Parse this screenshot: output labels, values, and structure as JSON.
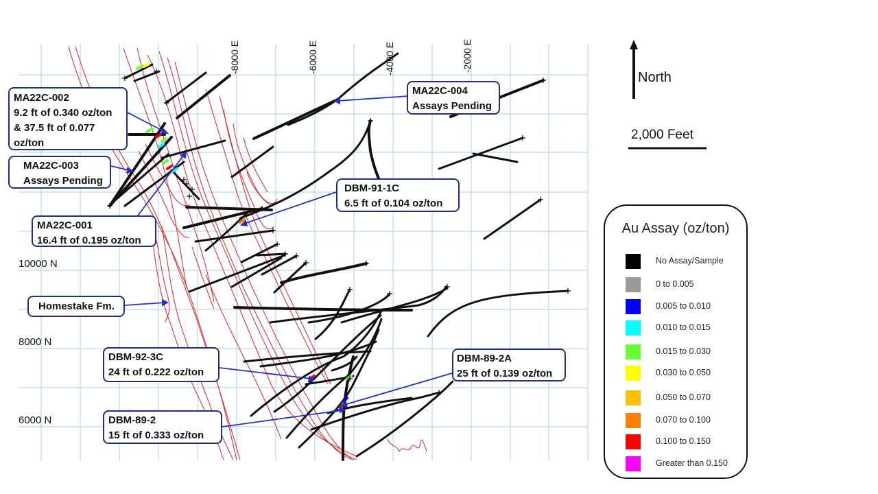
{
  "map": {
    "easting_labels": [
      "-8000 E",
      "-6000 E",
      "-4000 E",
      "-2000 E"
    ],
    "northing_labels": [
      "10000 N",
      "8000 N",
      "6000 N"
    ],
    "north_label": "North",
    "scale_label": "2,000 Feet"
  },
  "callouts": {
    "ma22c_002": {
      "line1": "MA22C-002",
      "line2": "9.2 ft of 0.340 oz/ton",
      "line3": "& 37.5 ft of 0.077",
      "line4": "oz/ton"
    },
    "ma22c_003": {
      "line1": "MA22C-003",
      "line2": "Assays Pending"
    },
    "ma22c_001": {
      "line1": "MA22C-001",
      "line2": "16.4 ft of 0.195 oz/ton"
    },
    "ma22c_004": {
      "line1": "MA22C-004",
      "line2": "Assays Pending"
    },
    "dbm_91_1c": {
      "line1": "DBM-91-1C",
      "line2": "6.5 ft of 0.104 oz/ton"
    },
    "homestake": {
      "line1": "Homestake Fm."
    },
    "dbm_92_3c": {
      "line1": "DBM-92-3C",
      "line2": "24 ft of 0.222 oz/ton"
    },
    "dbm_89_2a": {
      "line1": "DBM-89-2A",
      "line2": "25 ft of 0.139 oz/ton"
    },
    "dbm_89_2": {
      "line1": "DBM-89-2",
      "line2": "15 ft of 0.333 oz/ton"
    }
  },
  "legend": {
    "title": "Au Assay (oz/ton)",
    "items": [
      {
        "label": "No Assay/Sample",
        "color": "#000000"
      },
      {
        "label": "0 to 0.005",
        "color": "#999999"
      },
      {
        "label": "0.005 to 0.010",
        "color": "#0000ff"
      },
      {
        "label": "0.010 to 0.015",
        "color": "#00ffff"
      },
      {
        "label": "0.015 to 0.030",
        "color": "#66ff33"
      },
      {
        "label": "0.030 to 0.050",
        "color": "#ffff00"
      },
      {
        "label": "0.050 to 0.070",
        "color": "#ffc000"
      },
      {
        "label": "0.070 to 0.100",
        "color": "#ff8000"
      },
      {
        "label": "0.100 to 0.150",
        "color": "#ff0000"
      },
      {
        "label": "Greater than 0.150",
        "color": "#ff00ff"
      }
    ]
  },
  "colors": {
    "grid": "#b9d6ee",
    "formation": "#e02020",
    "drillhole": "#111111",
    "leader": "#1f2fcf",
    "callout_border": "#1f2f80"
  }
}
